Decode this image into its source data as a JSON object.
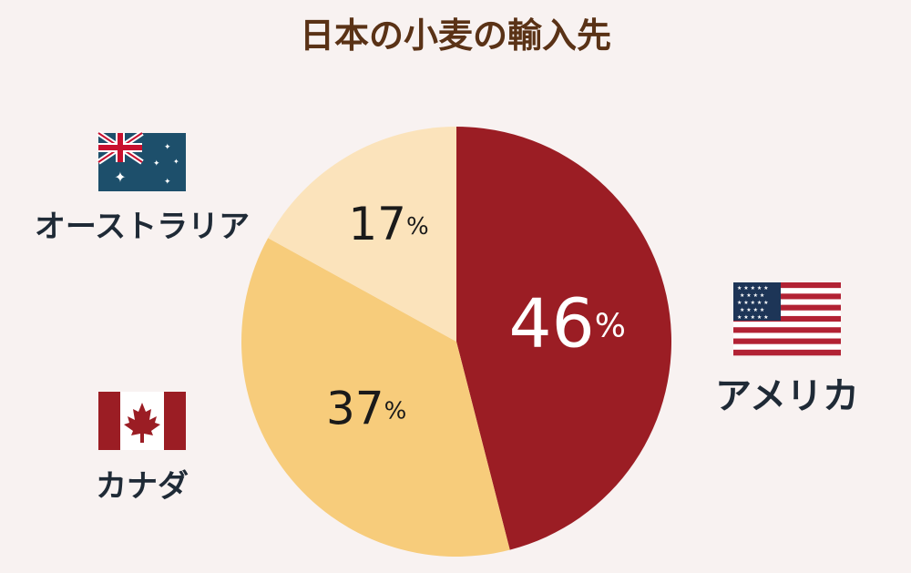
{
  "chart_data": {
    "type": "pie",
    "title": "日本の小麦の輸入先",
    "categories": [
      "アメリカ",
      "カナダ",
      "オーストラリア"
    ],
    "values": [
      46,
      37,
      17
    ],
    "unit": "%",
    "colors": [
      "#9b1d24",
      "#f7cc7b",
      "#fbe3bb"
    ],
    "label_colors": [
      "#ffffff",
      "#1a1a1a",
      "#1a1a1a"
    ],
    "legend": "none",
    "flags": [
      "us-flag",
      "canada-flag",
      "australia-flag"
    ]
  },
  "colors": {
    "background": "#f8f2f1",
    "title": "#5a3216",
    "label_text": "#1f2a36"
  }
}
